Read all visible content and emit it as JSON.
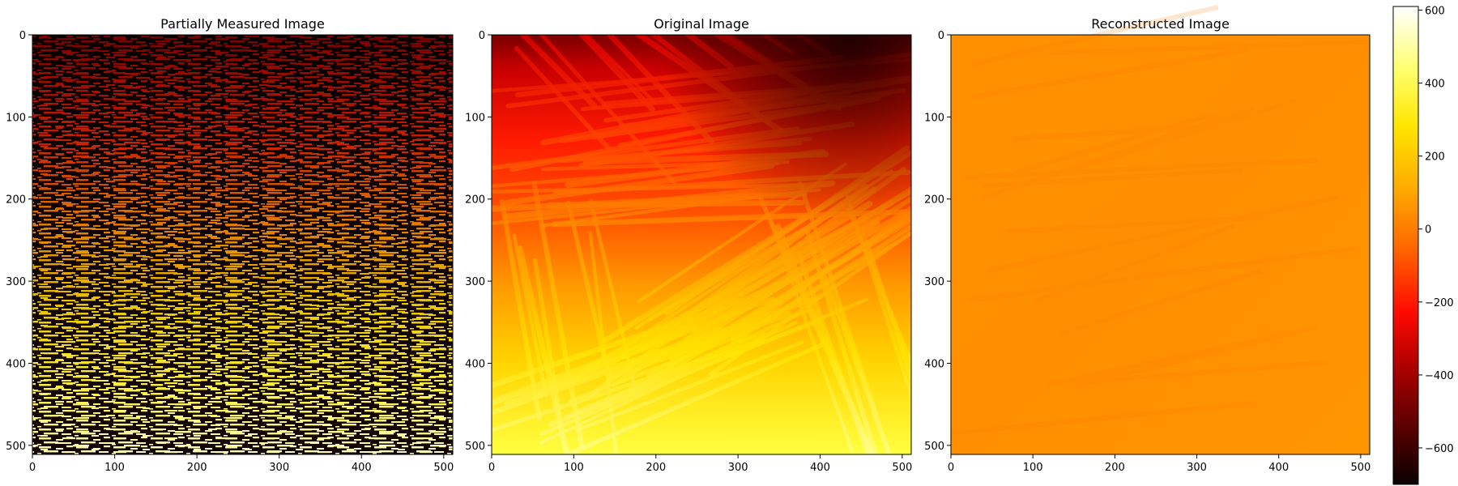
{
  "chart_data": [
    {
      "type": "heatmap",
      "title": "Partially Measured Image",
      "xlabel": "",
      "ylabel": "",
      "xlim": [
        0,
        511
      ],
      "ylim": [
        511,
        0
      ],
      "x_ticks": [
        0,
        100,
        200,
        300,
        400,
        500
      ],
      "y_ticks": [
        0,
        100,
        200,
        300,
        400,
        500
      ],
      "colormap": "hot",
      "description_values": {
        "top_rows_mean": -350,
        "bottom_rows_mean": 250,
        "unmeasured_value": -650
      }
    },
    {
      "type": "heatmap",
      "title": "Original Image",
      "xlabel": "",
      "ylabel": "",
      "xlim": [
        0,
        511
      ],
      "ylim": [
        511,
        0
      ],
      "x_ticks": [
        0,
        100,
        200,
        300,
        400,
        500
      ],
      "y_ticks": [
        0,
        100,
        200,
        300,
        400,
        500
      ],
      "colormap": "hot",
      "description_values": {
        "top_rows_mean": -300,
        "bottom_rows_mean": 450
      }
    },
    {
      "type": "heatmap",
      "title": "Reconstructed Image",
      "xlabel": "",
      "ylabel": "",
      "xlim": [
        0,
        511
      ],
      "ylim": [
        511,
        0
      ],
      "x_ticks": [
        0,
        100,
        200,
        300,
        400,
        500
      ],
      "y_ticks": [
        0,
        100,
        200,
        300,
        400,
        500
      ],
      "colormap": "hot",
      "description_values": {
        "approx_uniform_value": 0
      }
    }
  ],
  "colorbar": {
    "range": [
      -700,
      610
    ],
    "ticks": [
      600,
      400,
      200,
      0,
      -200,
      -400,
      -600
    ],
    "tick_labels": [
      "600",
      "400",
      "200",
      "0",
      "−200",
      "−400",
      "−600"
    ],
    "colormap": "hot"
  }
}
